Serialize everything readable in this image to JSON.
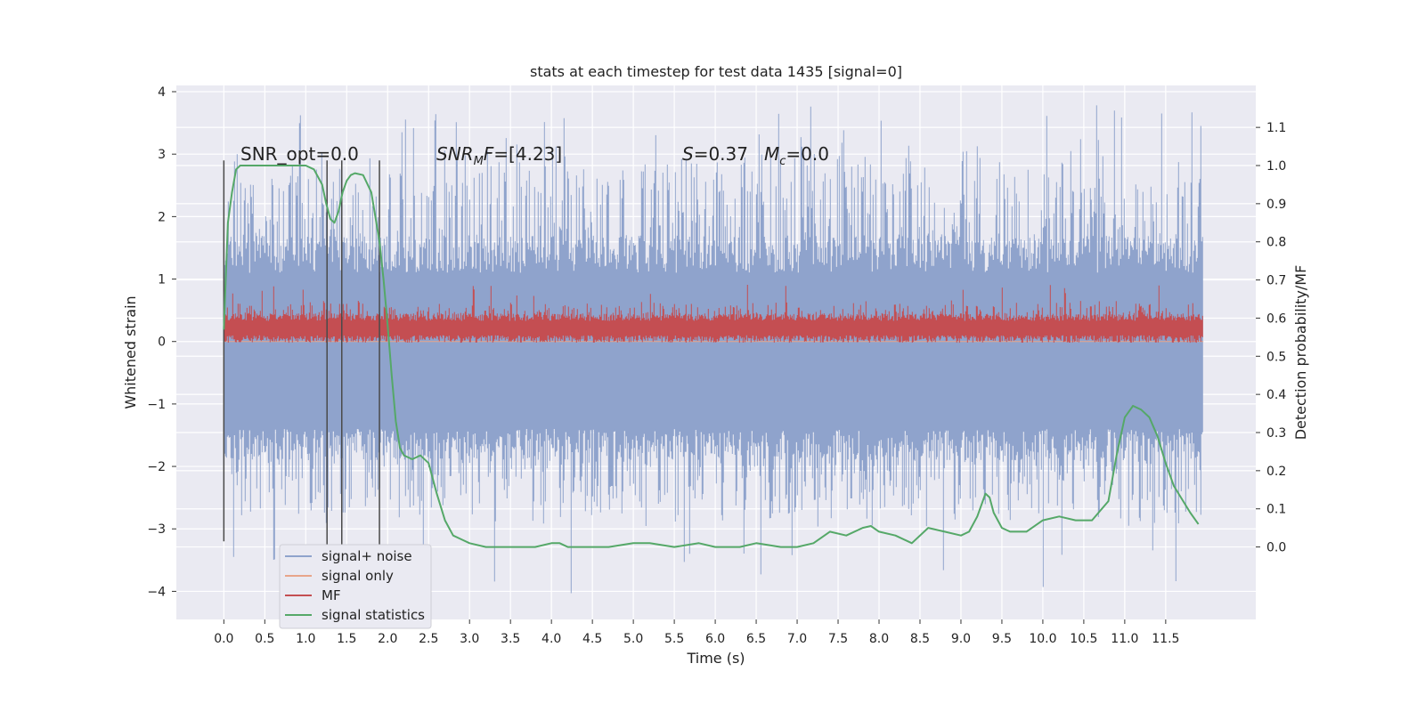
{
  "chart_data": {
    "type": "line",
    "title": "stats at each timestep for test data 1435 [signal=0]",
    "xlabel": "Time (s)",
    "ylabel": "Whitened strain",
    "y2label": "Detection probability/MF",
    "xlim": [
      -0.58,
      12.6
    ],
    "ylim": [
      -4.45,
      4.1
    ],
    "y2lim": [
      -0.19,
      1.21
    ],
    "xticks": [
      "0.0",
      "0.5",
      "1.0",
      "1.5",
      "2.0",
      "2.5",
      "3.0",
      "3.5",
      "4.0",
      "4.5",
      "5.0",
      "5.5",
      "6.0",
      "6.5",
      "7.0",
      "7.5",
      "8.0",
      "8.5",
      "9.0",
      "9.5",
      "10.0",
      "10.5",
      "11.0",
      "11.5"
    ],
    "yticks": [
      "4",
      "3",
      "2",
      "1",
      "0",
      "−1",
      "−2",
      "−3",
      "−4"
    ],
    "y2ticks": [
      "1.1",
      "1.0",
      "0.9",
      "0.8",
      "0.7",
      "0.6",
      "0.5",
      "0.4",
      "0.3",
      "0.2",
      "0.1",
      "0.0"
    ],
    "grid": true,
    "legend_position": "lower-left",
    "colors": {
      "noise": "#8fa3cc",
      "signal": "#e8a58a",
      "mf": "#c44e52",
      "stats": "#55a868",
      "background": "#eaeaf2",
      "grid": "#ffffff",
      "vlines": "#4a4a4a"
    },
    "series": [
      {
        "name": "signal+ noise",
        "kind": "noise",
        "t_range": [
          0.0,
          11.96
        ],
        "envelope_upper": [
          2.2,
          3.8
        ],
        "envelope_lower": [
          -1.5,
          -4.1
        ]
      },
      {
        "name": "signal only",
        "kind": "flat",
        "values": [
          0,
          0
        ]
      },
      {
        "name": "MF",
        "kind": "mf",
        "t_range": [
          0.0,
          11.96
        ],
        "band": [
          0.0,
          0.45
        ],
        "peak": 0.95
      },
      {
        "name": "signal statistics",
        "kind": "line",
        "axis": "right",
        "x": [
          0.0,
          0.05,
          0.1,
          0.15,
          0.2,
          0.3,
          0.5,
          0.8,
          1.0,
          1.1,
          1.2,
          1.25,
          1.3,
          1.35,
          1.4,
          1.45,
          1.5,
          1.55,
          1.6,
          1.7,
          1.8,
          1.9,
          1.95,
          2.0,
          2.05,
          2.1,
          2.15,
          2.2,
          2.3,
          2.4,
          2.5,
          2.6,
          2.7,
          2.8,
          2.9,
          3.0,
          3.2,
          3.5,
          3.8,
          4.0,
          4.1,
          4.2,
          4.4,
          4.7,
          5.0,
          5.2,
          5.5,
          5.8,
          6.0,
          6.3,
          6.5,
          6.8,
          7.0,
          7.2,
          7.4,
          7.6,
          7.8,
          7.9,
          8.0,
          8.2,
          8.4,
          8.6,
          8.8,
          9.0,
          9.1,
          9.2,
          9.3,
          9.35,
          9.4,
          9.5,
          9.6,
          9.8,
          10.0,
          10.2,
          10.4,
          10.6,
          10.8,
          10.9,
          11.0,
          11.1,
          11.2,
          11.3,
          11.4,
          11.5,
          11.6,
          11.8,
          11.9
        ],
        "y": [
          0.57,
          0.85,
          0.93,
          0.99,
          1.0,
          1.0,
          1.0,
          1.0,
          1.0,
          0.99,
          0.95,
          0.9,
          0.86,
          0.85,
          0.88,
          0.93,
          0.96,
          0.975,
          0.98,
          0.975,
          0.93,
          0.8,
          0.7,
          0.58,
          0.45,
          0.33,
          0.26,
          0.24,
          0.23,
          0.24,
          0.22,
          0.14,
          0.07,
          0.03,
          0.02,
          0.01,
          0.0,
          0.0,
          0.0,
          0.01,
          0.01,
          0.0,
          0.0,
          0.0,
          0.01,
          0.01,
          0.0,
          0.01,
          0.0,
          0.0,
          0.01,
          0.0,
          0.0,
          0.01,
          0.04,
          0.03,
          0.05,
          0.055,
          0.04,
          0.03,
          0.01,
          0.05,
          0.04,
          0.03,
          0.04,
          0.08,
          0.14,
          0.13,
          0.09,
          0.05,
          0.04,
          0.04,
          0.07,
          0.08,
          0.07,
          0.07,
          0.12,
          0.24,
          0.34,
          0.37,
          0.36,
          0.34,
          0.29,
          0.22,
          0.16,
          0.09,
          0.06
        ]
      },
      {
        "name": "vlines",
        "kind": "vlines",
        "x": [
          0.0,
          1.26,
          1.44,
          1.9
        ],
        "y0": [
          -3.2,
          -3.3,
          -3.3,
          -3.3
        ],
        "y1": [
          2.9,
          2.9,
          2.9,
          2.9
        ]
      }
    ],
    "annotations": [
      {
        "text": "SNR_opt=0.0",
        "x": 0.2,
        "y": 3.0
      },
      {
        "text": "SNR",
        "sub": "M",
        "tail": "F=[4.23]",
        "x": 2.6,
        "y": 3.0,
        "italic": true
      },
      {
        "text": "S",
        "tail": "=0.37",
        "x": 5.6,
        "y": 3.0,
        "italic": true
      },
      {
        "text": "M",
        "sub": "c",
        "tail": "=0.0",
        "x": 6.65,
        "y": 3.0,
        "italic": true
      }
    ]
  }
}
